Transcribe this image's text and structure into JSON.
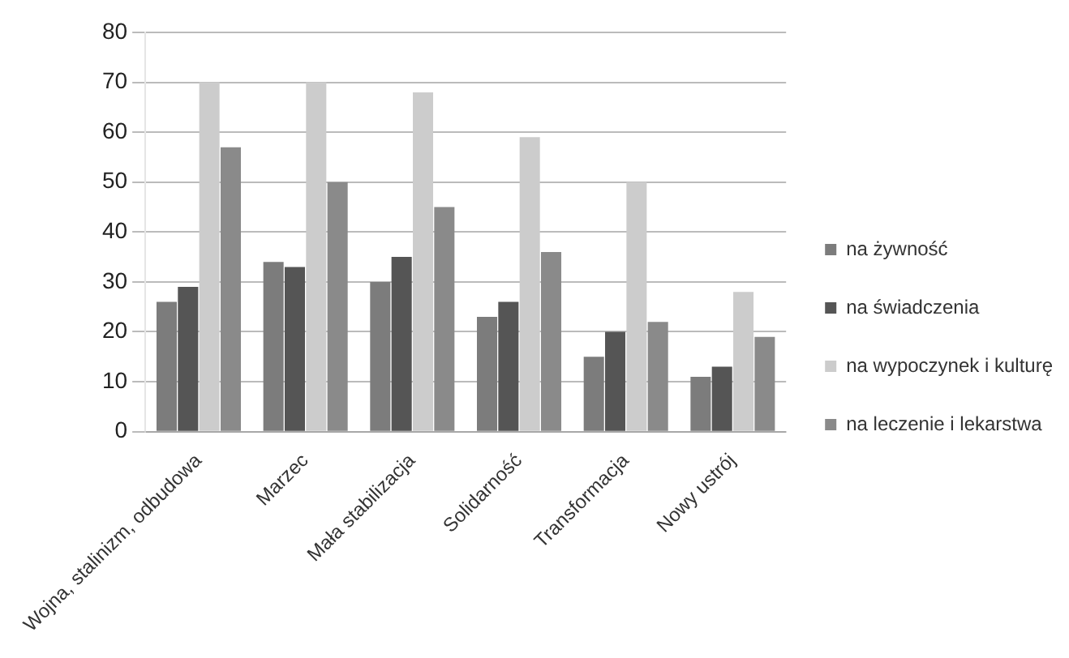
{
  "chart_data": {
    "type": "bar",
    "categories": [
      "Wojna, stalinizm, odbudowa",
      "Marzec",
      "Mała stabilizacja",
      "Solidarność",
      "Transformacja",
      "Nowy ustrój"
    ],
    "series": [
      {
        "name": "na żywność",
        "color": "#7c7c7c",
        "values": [
          26,
          34,
          30,
          23,
          15,
          11
        ]
      },
      {
        "name": "na świadczenia",
        "color": "#555555",
        "values": [
          29,
          33,
          35,
          26,
          20,
          13
        ]
      },
      {
        "name": "na wypoczynek i kulturę",
        "color": "#cccccc",
        "values": [
          70,
          70,
          68,
          59,
          50,
          28
        ]
      },
      {
        "name": "na leczenie i lekarstwa",
        "color": "#8a8a8a",
        "values": [
          57,
          50,
          45,
          36,
          22,
          19
        ]
      }
    ],
    "ylim": [
      0,
      80
    ],
    "yticks": [
      0,
      10,
      20,
      30,
      40,
      50,
      60,
      70,
      80
    ],
    "grid": "y",
    "legend": "right"
  }
}
